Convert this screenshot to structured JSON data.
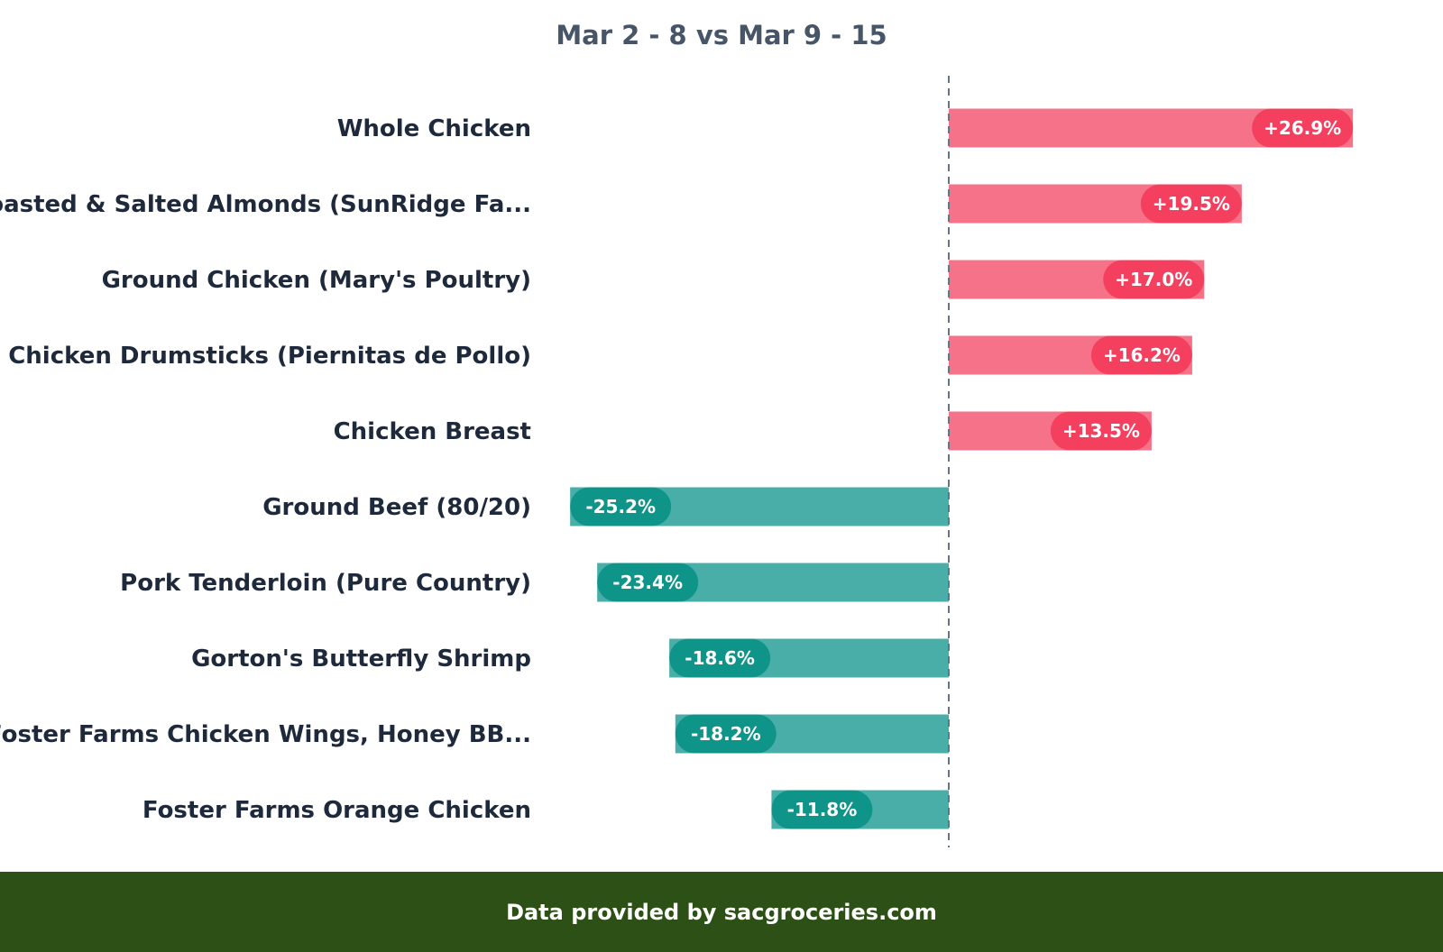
{
  "chart_data": {
    "type": "bar",
    "orientation": "horizontal",
    "title": "Mar 2 - 8 vs Mar 9 - 15",
    "categories": [
      "Whole Chicken",
      "Roasted & Salted Almonds (SunRidge Fa...",
      "Ground Chicken (Mary's Poultry)",
      "Chicken Drumsticks (Piernitas de Pollo)",
      "Chicken Breast",
      "Ground Beef (80/20)",
      "Pork Tenderloin (Pure Country)",
      "Gorton's Butterfly Shrimp",
      "Foster Farms Chicken Wings, Honey BB...",
      "Foster Farms Orange Chicken"
    ],
    "values": [
      26.9,
      19.5,
      17.0,
      16.2,
      13.5,
      -25.2,
      -23.4,
      -18.6,
      -18.2,
      -11.8
    ],
    "data_labels": [
      "+26.9%",
      "+19.5%",
      "+17.0%",
      "+16.2%",
      "+13.5%",
      "-25.2%",
      "-23.4%",
      "-18.6%",
      "-18.2%",
      "-11.8%"
    ],
    "unit": "%",
    "zero_line": "dashed",
    "grid": false,
    "colors": {
      "positive_bar": "#f67289",
      "positive_label": "#f43f5e",
      "negative_bar": "#4aaea8",
      "negative_label": "#0e9488",
      "zero_line": "#64748b"
    }
  },
  "footer": {
    "text": "Data provided by sacgroceries.com",
    "color": "#2d5016"
  }
}
